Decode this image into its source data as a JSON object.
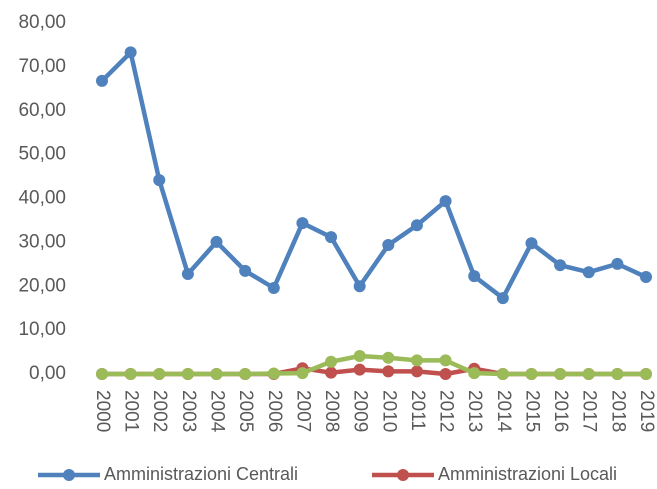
{
  "chart_data": {
    "type": "line",
    "categories": [
      "2000",
      "2001",
      "2002",
      "2003",
      "2004",
      "2005",
      "2006",
      "2007",
      "2008",
      "2009",
      "2010",
      "2011",
      "2012",
      "2013",
      "2014",
      "2015",
      "2016",
      "2017",
      "2018",
      "2019"
    ],
    "series": [
      {
        "name": "Amministrazioni Centrali",
        "color": "#4f81bd",
        "values": [
          66.8,
          73.3,
          44.2,
          22.8,
          30.1,
          23.5,
          19.6,
          34.4,
          31.2,
          20.0,
          29.4,
          33.9,
          39.4,
          22.3,
          17.3,
          29.8,
          24.8,
          23.2,
          25.1,
          22.1
        ]
      },
      {
        "name": "Amministrazioni Locali",
        "color": "#c0504d",
        "values": [
          0,
          0,
          0,
          0,
          0,
          0,
          0,
          1.3,
          0.3,
          1.0,
          0.6,
          0.6,
          0,
          1.2,
          0,
          0,
          0,
          0,
          0,
          0
        ]
      },
      {
        "color": "#9bbb59",
        "values": [
          0,
          0,
          0,
          0,
          0,
          0,
          0.1,
          0.2,
          2.8,
          4.1,
          3.7,
          3.1,
          3.1,
          0.2,
          0,
          0,
          0,
          0,
          0,
          0
        ]
      }
    ],
    "ylim": [
      0,
      80
    ],
    "yticks": [
      {
        "value": 0,
        "label": "0,00"
      },
      {
        "value": 10,
        "label": "10,00"
      },
      {
        "value": 20,
        "label": "20,00"
      },
      {
        "value": 30,
        "label": "30,00"
      },
      {
        "value": 40,
        "label": "40,00"
      },
      {
        "value": 50,
        "label": "50,00"
      },
      {
        "value": 60,
        "label": "60,00"
      },
      {
        "value": 70,
        "label": "70,00"
      },
      {
        "value": 80,
        "label": "80,00"
      }
    ],
    "grid": false,
    "legend": "bottom"
  }
}
